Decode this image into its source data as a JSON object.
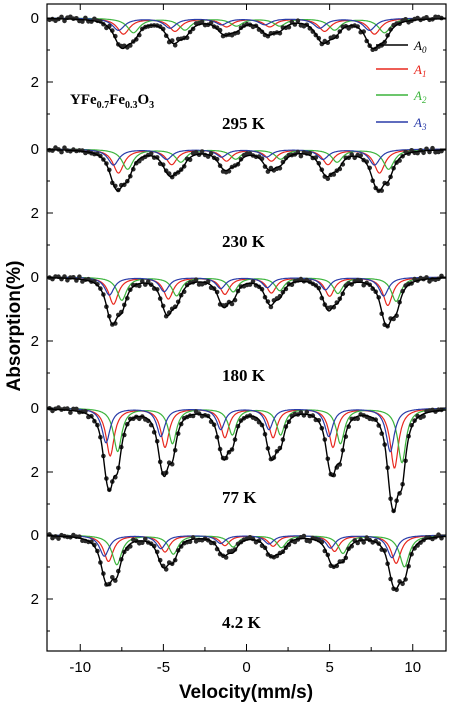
{
  "chart_data": {
    "type": "scatter",
    "compound_label": "YFe0.7Fe0.3O3",
    "compound_parts": {
      "base": "YFe",
      "sub1": "0.7",
      "mid": "Fe",
      "sub2": "0.3",
      "end": "O",
      "sub3": "3"
    },
    "xlabel": "Velocity(mm/s)",
    "ylabel": "Absorption(%)",
    "xlim": [
      -12,
      12
    ],
    "x_ticks": [
      "-10",
      "-5",
      "0",
      "5",
      "10"
    ],
    "y_ticks": [
      "0",
      "2"
    ],
    "legend": {
      "placement": "top-right",
      "entries": [
        {
          "base": "A",
          "sub": "0",
          "color": "#000000"
        },
        {
          "base": "A",
          "sub": "1",
          "color": "#e8281e"
        },
        {
          "base": "A",
          "sub": "2",
          "color": "#3cb43c"
        },
        {
          "base": "A",
          "sub": "3",
          "color": "#2a3ca8"
        }
      ]
    },
    "panels": [
      {
        "temperature": "295 K",
        "ylim": [
          0,
          3.3
        ],
        "peaks": [
          -7.4,
          -4.3,
          -1.2,
          1.4,
          4.7,
          7.7
        ],
        "depths": [
          1.05,
          0.85,
          0.55,
          0.55,
          0.85,
          1.05
        ],
        "components": [
          {
            "shift": 0.0,
            "scale": 0.47,
            "width": 0.45
          },
          {
            "shift": 0.6,
            "scale": 0.43,
            "width": 0.45
          },
          {
            "shift": -0.3,
            "scale": 0.36,
            "width": 0.45
          }
        ]
      },
      {
        "temperature": "230 K",
        "ylim": [
          0,
          3.3
        ],
        "peaks": [
          -7.7,
          -4.5,
          -1.2,
          1.5,
          4.9,
          8.0
        ],
        "depths": [
          1.65,
          1.05,
          0.8,
          0.8,
          1.05,
          1.65
        ],
        "components": [
          {
            "shift": 0.0,
            "scale": 0.45,
            "width": 0.4
          },
          {
            "shift": 0.55,
            "scale": 0.38,
            "width": 0.4
          },
          {
            "shift": -0.3,
            "scale": 0.3,
            "width": 0.4
          }
        ]
      },
      {
        "temperature": "180 K",
        "ylim": [
          0,
          3.3
        ],
        "peaks": [
          -8.0,
          -4.7,
          -1.3,
          1.5,
          5.0,
          8.5
        ],
        "depths": [
          2.0,
          1.6,
          1.25,
          1.15,
          1.4,
          2.1
        ],
        "components": [
          {
            "shift": 0.0,
            "scale": 0.42,
            "width": 0.35
          },
          {
            "shift": 0.5,
            "scale": 0.36,
            "width": 0.35
          },
          {
            "shift": -0.25,
            "scale": 0.28,
            "width": 0.35
          }
        ]
      },
      {
        "temperature": "77 K",
        "ylim": [
          0,
          3.3
        ],
        "peaks": [
          -8.2,
          -4.9,
          -1.3,
          1.6,
          5.2,
          8.9
        ],
        "depths": [
          2.7,
          2.2,
          1.65,
          1.65,
          2.2,
          3.4
        ],
        "components": [
          {
            "shift": 0.0,
            "scale": 0.55,
            "width": 0.3
          },
          {
            "shift": 0.45,
            "scale": 0.5,
            "width": 0.3
          },
          {
            "shift": -0.25,
            "scale": 0.4,
            "width": 0.3
          }
        ]
      },
      {
        "temperature": "4.2 K",
        "ylim": [
          0,
          3.3
        ],
        "peaks": [
          -8.3,
          -4.9,
          -1.3,
          1.6,
          5.3,
          9.0
        ],
        "depths": [
          2.05,
          1.3,
          0.8,
          0.85,
          1.25,
          2.2
        ],
        "components": [
          {
            "shift": 0.0,
            "scale": 0.4,
            "width": 0.35
          },
          {
            "shift": 0.5,
            "scale": 0.45,
            "width": 0.35
          },
          {
            "shift": -0.25,
            "scale": 0.32,
            "width": 0.35
          }
        ]
      }
    ]
  }
}
